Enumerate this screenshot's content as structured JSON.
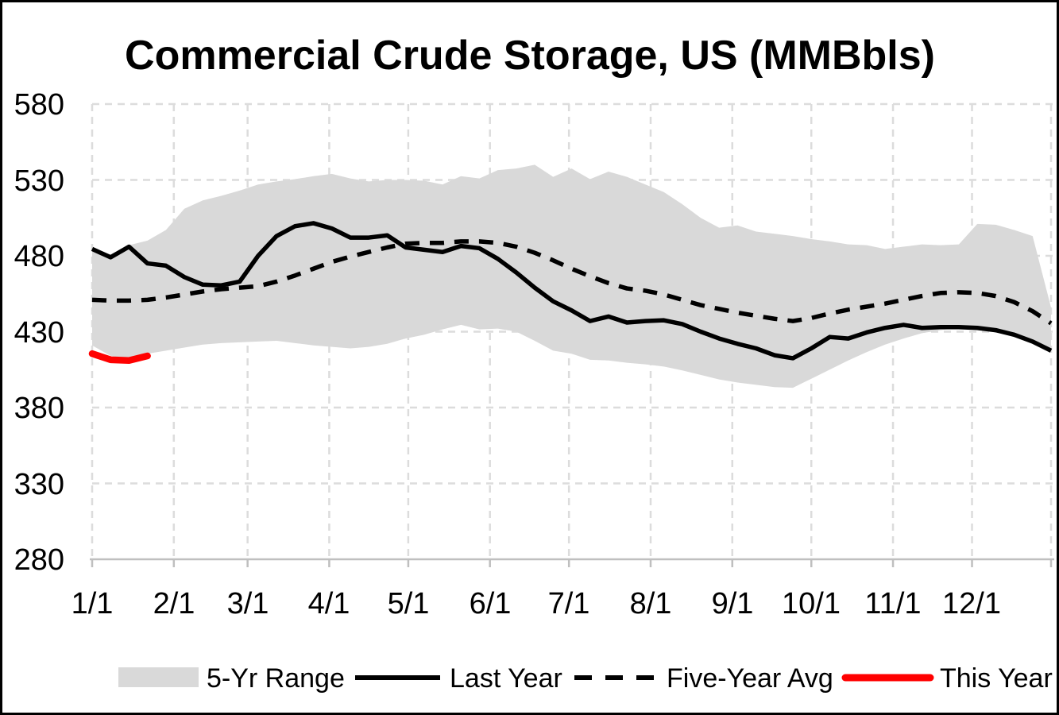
{
  "chart_data": {
    "type": "area+line",
    "title": "Commercial Crude Storage, US (MMBbls)",
    "ylabel": "",
    "xlabel": "",
    "ylim": [
      280,
      580
    ],
    "y_ticks": [
      580,
      530,
      480,
      430,
      380,
      330,
      280
    ],
    "x_labels": [
      "1/1",
      "2/1",
      "3/1",
      "4/1",
      "5/1",
      "6/1",
      "7/1",
      "8/1",
      "9/1",
      "10/1",
      "11/1",
      "12/1"
    ],
    "month_start_days": [
      0,
      31,
      59,
      90,
      120,
      151,
      181,
      212,
      243,
      273,
      304,
      334
    ],
    "x_range_days": [
      0,
      364
    ],
    "days_per_point": 7,
    "grid": "dashed",
    "legend_position": "bottom",
    "legend": [
      {
        "label": "5-Yr Range",
        "swatch": "band"
      },
      {
        "label": "Last Year",
        "swatch": "solid-line"
      },
      {
        "label": "Five-Year Avg",
        "swatch": "dashed-line"
      },
      {
        "label": "This Year",
        "swatch": "red-line"
      }
    ],
    "series": [
      {
        "name": "5-Yr Range",
        "type": "band",
        "top": [
          483.5,
          481,
          487,
          490,
          497,
          511,
          516.5,
          519.5,
          523,
          527,
          529,
          530.5,
          532.5,
          534,
          531,
          529,
          530,
          530,
          529.5,
          527,
          532.5,
          531,
          536.5,
          537.5,
          540,
          532,
          537.5,
          530.5,
          535.5,
          532,
          527,
          522,
          514,
          505,
          498.5,
          500,
          496,
          494.5,
          493,
          491,
          489.5,
          487.5,
          487,
          484.5,
          486,
          487.5,
          487,
          487.5,
          501,
          500.5,
          497,
          493,
          446
        ],
        "bottom": [
          421,
          414,
          412,
          415.5,
          417.5,
          419.5,
          421.5,
          422.5,
          423,
          423.5,
          424,
          422.5,
          421,
          420,
          419,
          420,
          422,
          425.5,
          428,
          431.5,
          434.5,
          431.5,
          432,
          430,
          424,
          417.5,
          415.5,
          411.5,
          411,
          409.5,
          408.5,
          407,
          404.5,
          401.5,
          398.5,
          396.5,
          395,
          393.5,
          393,
          399,
          405,
          411,
          416.5,
          421.5,
          425.5,
          429,
          431,
          432.5,
          432.5,
          431,
          428,
          423.5,
          417.5
        ]
      },
      {
        "name": "Last Year",
        "type": "line",
        "values": [
          484.5,
          479,
          486,
          475,
          473.5,
          466,
          461,
          460.5,
          463,
          480,
          493,
          499.5,
          501.5,
          498,
          492,
          492,
          493.5,
          485.5,
          484,
          482.5,
          486.5,
          485,
          478,
          469,
          459,
          450,
          444,
          437,
          440,
          436,
          437,
          437.5,
          435,
          430,
          425.5,
          422,
          419,
          414.5,
          412.5,
          419,
          426.5,
          425.5,
          429.5,
          432.5,
          434.5,
          432.5,
          433,
          433,
          432.5,
          431,
          428,
          423.5,
          417.5
        ]
      },
      {
        "name": "Five-Year Avg",
        "type": "dashed-line",
        "values": [
          451,
          450.5,
          450.5,
          451,
          452.5,
          454.5,
          456.5,
          458,
          459,
          460,
          463,
          467,
          471.5,
          476,
          479.5,
          482.5,
          485.5,
          488,
          488.5,
          488.5,
          489.5,
          489.5,
          488.5,
          486,
          482,
          477,
          471.5,
          466.5,
          462,
          458.5,
          457,
          454.5,
          451,
          447.5,
          445,
          442.5,
          440.5,
          438.5,
          437,
          439,
          442,
          444.5,
          446.5,
          448.5,
          451,
          453.5,
          455.5,
          456,
          455.5,
          453.5,
          449.5,
          443.5,
          435.5
        ]
      },
      {
        "name": "This Year",
        "type": "line",
        "values": [
          415.5,
          411.5,
          411,
          414
        ]
      }
    ],
    "colors": {
      "band": "#d9d9d9",
      "gridline": "#dcdcdc",
      "axis_line": "#bfbfbf",
      "last_year": "#000000",
      "five_year_avg": "#000000",
      "this_year": "#ff0000",
      "text": "#000000",
      "background": "#ffffff"
    }
  }
}
